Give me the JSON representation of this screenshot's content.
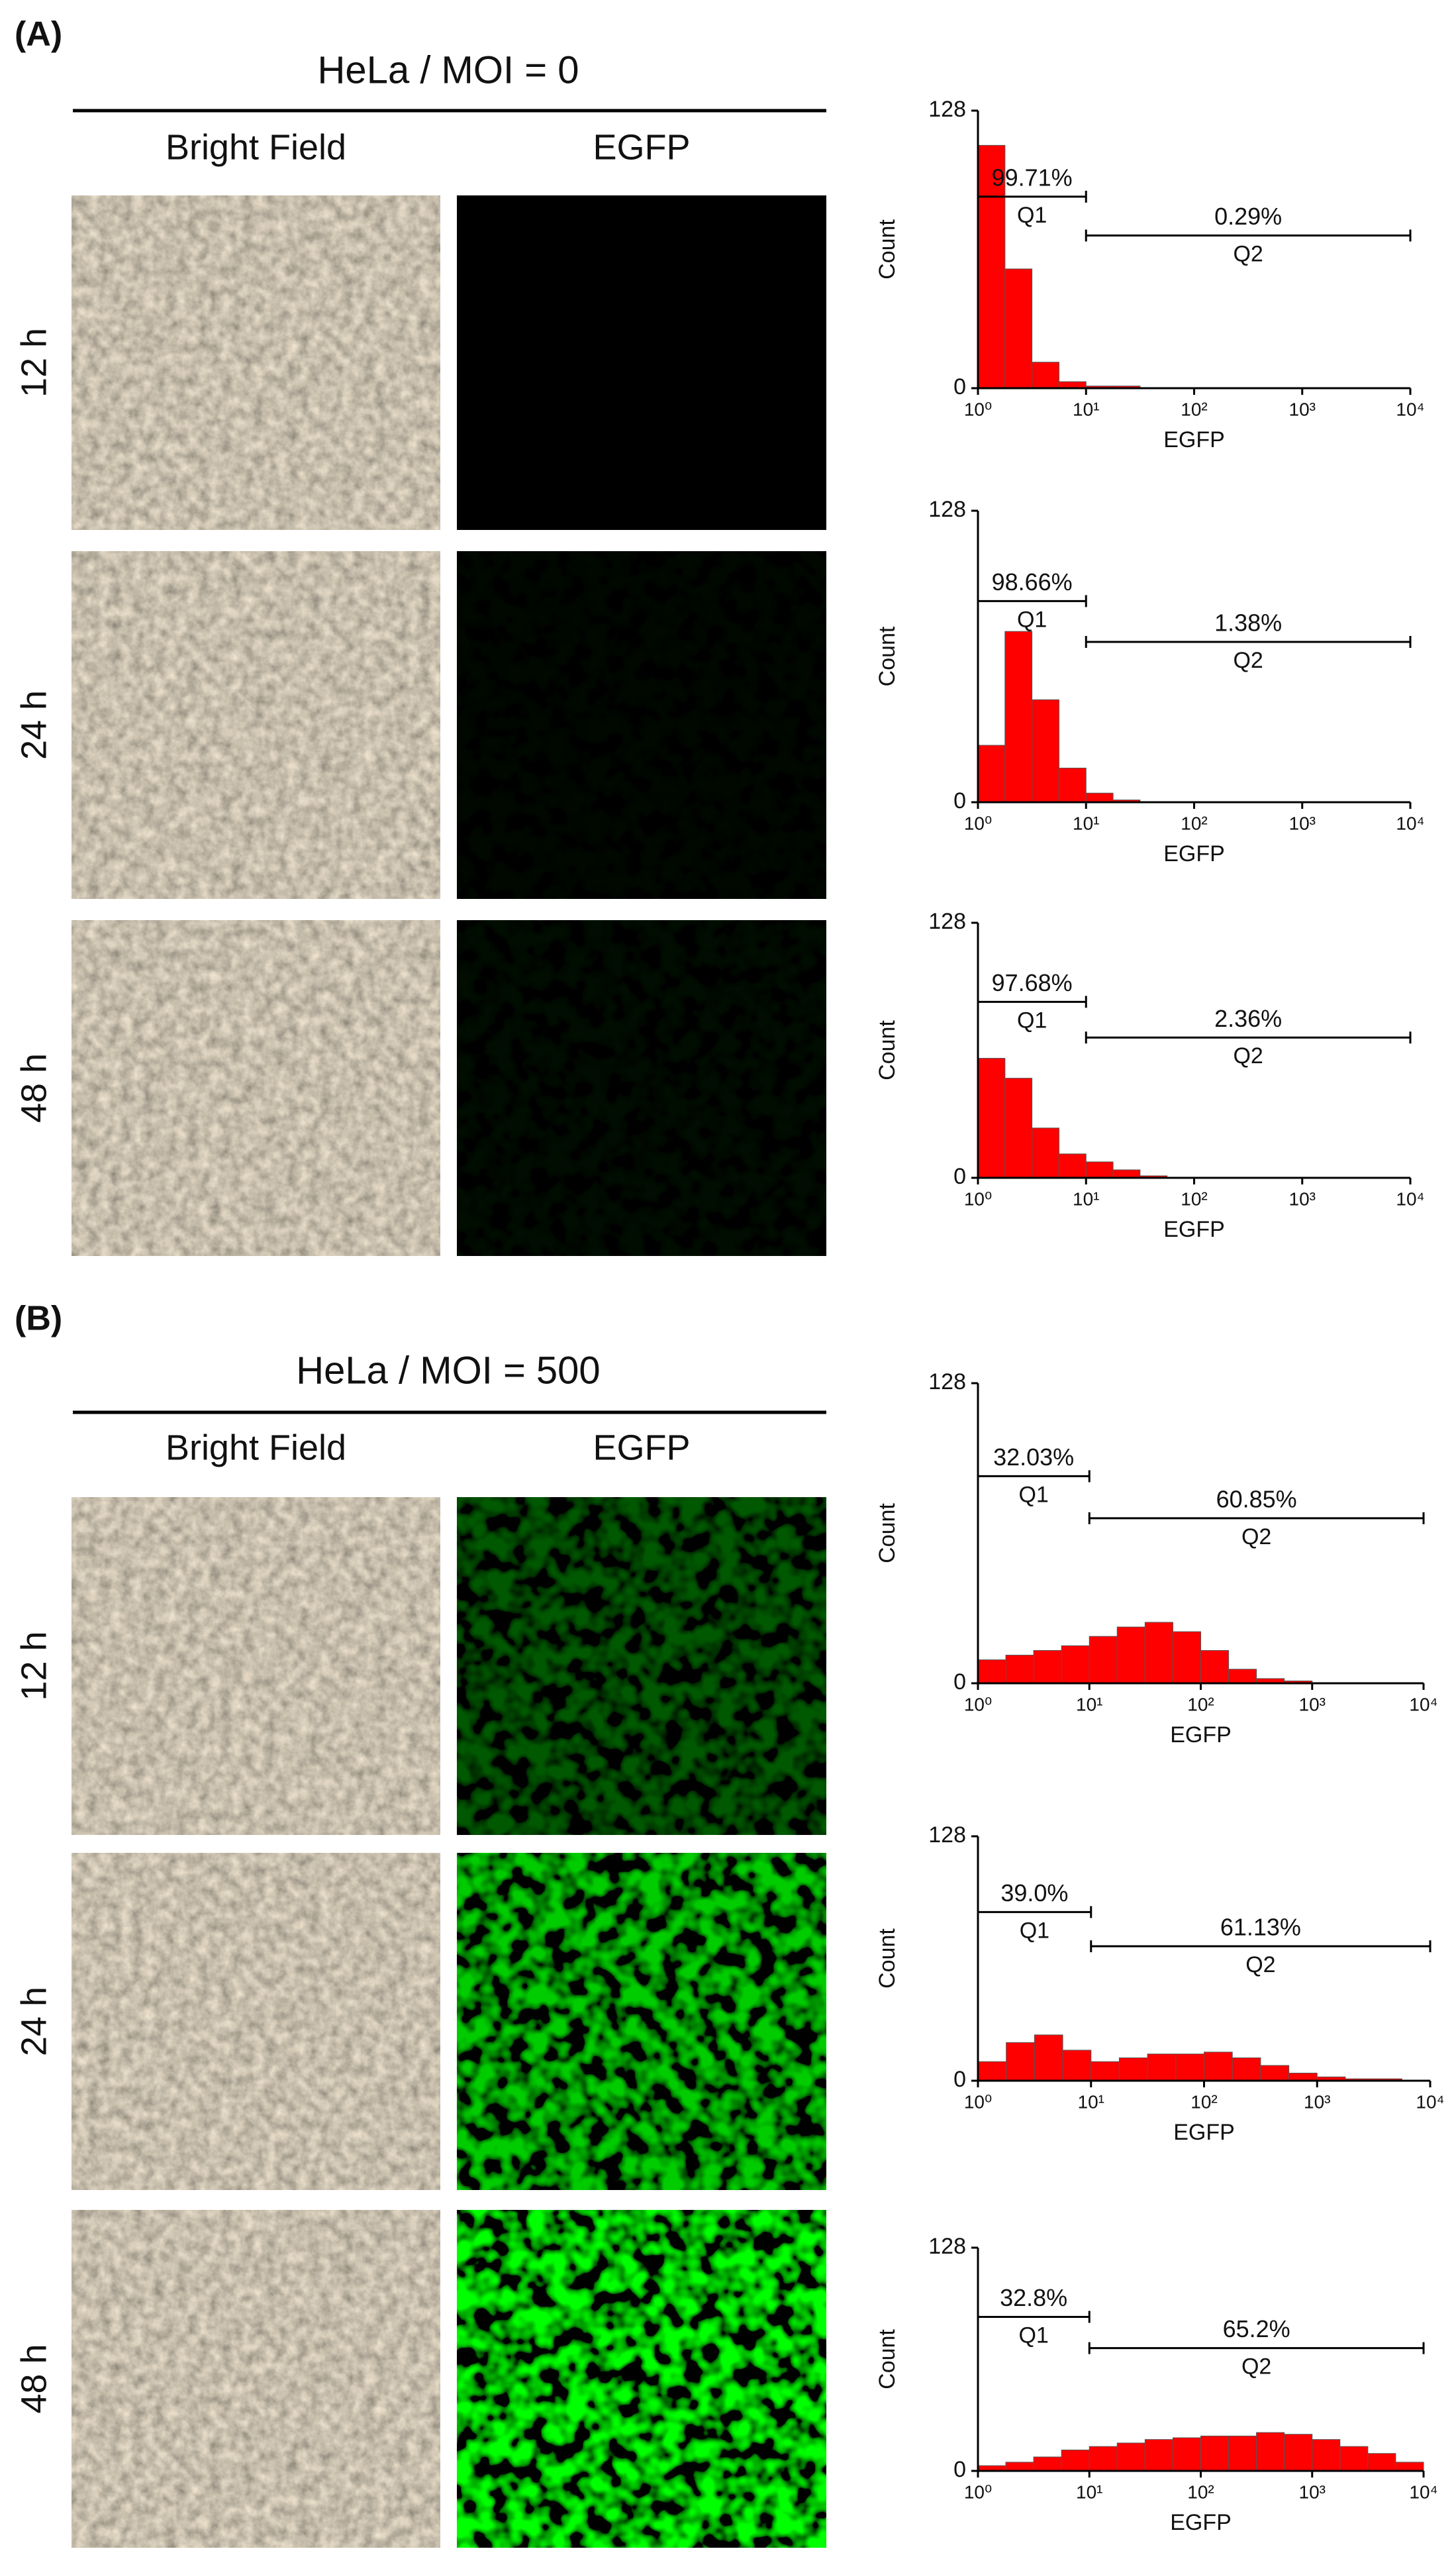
{
  "panels": [
    {
      "label": "(A)",
      "title": "HeLa / MOI = 0",
      "columns": [
        "Bright Field",
        "EGFP"
      ],
      "rows": [
        "12 h",
        "24 h",
        "48 h"
      ]
    },
    {
      "label": "(B)",
      "title": "HeLa / MOI = 500",
      "columns": [
        "Bright Field",
        "EGFP"
      ],
      "rows": [
        "12 h",
        "24 h",
        "48 h"
      ]
    }
  ],
  "chart_data": [
    {
      "type": "histogram",
      "x_label": "EGFP",
      "y_label": "Count",
      "xscale": "log",
      "color": "#ff0000",
      "bins": [
        1,
        1.778,
        3.162,
        5.623,
        10,
        17.78,
        31.62,
        56.23,
        100,
        177.8,
        316.2,
        562.3,
        1000,
        1778,
        3162,
        5623,
        10000
      ],
      "values": [
        112,
        55,
        12,
        3,
        1,
        1,
        0,
        0,
        0,
        0,
        0,
        0,
        0,
        0,
        0,
        0
      ],
      "xlim": [
        1,
        10000
      ],
      "ylim": [
        0,
        128
      ],
      "xticks": [
        {
          "value": 1,
          "label": "10⁰"
        },
        {
          "value": 10,
          "label": "10¹"
        },
        {
          "value": 100,
          "label": "10²"
        },
        {
          "value": 1000,
          "label": "10³"
        },
        {
          "value": 10000,
          "label": "10⁴"
        }
      ],
      "yticks": [
        0,
        128
      ],
      "gates": {
        "names": [
          "Q1",
          "Q2"
        ],
        "values": [
          99.71,
          0.29
        ],
        "value_labels": [
          "99.71%",
          "0.29%"
        ],
        "ranges": [
          [
            1,
            10
          ],
          [
            10,
            10000
          ]
        ]
      }
    },
    {
      "type": "histogram",
      "x_label": "EGFP",
      "y_label": "Count",
      "xscale": "log",
      "color": "#ff0000",
      "bins": [
        1,
        1.778,
        3.162,
        5.623,
        10,
        17.78,
        31.62,
        56.23,
        100,
        177.8,
        316.2,
        562.3,
        1000,
        1778,
        3162,
        5623,
        10000
      ],
      "values": [
        25,
        75,
        45,
        15,
        4,
        1,
        0,
        0,
        0,
        0,
        0,
        0,
        0,
        0,
        0,
        0
      ],
      "xlim": [
        1,
        10000
      ],
      "ylim": [
        0,
        128
      ],
      "xticks": [
        {
          "value": 1,
          "label": "10⁰"
        },
        {
          "value": 10,
          "label": "10¹"
        },
        {
          "value": 100,
          "label": "10²"
        },
        {
          "value": 1000,
          "label": "10³"
        },
        {
          "value": 10000,
          "label": "10⁴"
        }
      ],
      "yticks": [
        0,
        128
      ],
      "gates": {
        "names": [
          "Q1",
          "Q2"
        ],
        "values": [
          98.66,
          1.38
        ],
        "value_labels": [
          "98.66%",
          "1.38%"
        ],
        "ranges": [
          [
            1,
            10
          ],
          [
            10,
            10000
          ]
        ]
      }
    },
    {
      "type": "histogram",
      "x_label": "EGFP",
      "y_label": "Count",
      "xscale": "log",
      "color": "#ff0000",
      "bins": [
        1,
        1.778,
        3.162,
        5.623,
        10,
        17.78,
        31.62,
        56.23,
        100,
        177.8,
        316.2,
        562.3,
        1000,
        1778,
        3162,
        5623,
        10000
      ],
      "values": [
        60,
        50,
        25,
        12,
        8,
        4,
        1,
        0,
        0,
        0,
        0,
        0,
        0,
        0,
        0,
        0
      ],
      "xlim": [
        1,
        10000
      ],
      "ylim": [
        0,
        128
      ],
      "xticks": [
        {
          "value": 1,
          "label": "10⁰"
        },
        {
          "value": 10,
          "label": "10¹"
        },
        {
          "value": 100,
          "label": "10²"
        },
        {
          "value": 1000,
          "label": "10³"
        },
        {
          "value": 10000,
          "label": "10⁴"
        }
      ],
      "yticks": [
        0,
        128
      ],
      "gates": {
        "names": [
          "Q1",
          "Q2"
        ],
        "values": [
          97.68,
          2.36
        ],
        "value_labels": [
          "97.68%",
          "2.36%"
        ],
        "ranges": [
          [
            1,
            10
          ],
          [
            10,
            10000
          ]
        ]
      }
    },
    {
      "type": "histogram",
      "x_label": "EGFP",
      "y_label": "Count",
      "xscale": "log",
      "color": "#ff0000",
      "bins": [
        1,
        1.778,
        3.162,
        5.623,
        10,
        17.78,
        31.62,
        56.23,
        100,
        177.8,
        316.2,
        562.3,
        1000,
        1778,
        3162,
        5623,
        10000
      ],
      "values": [
        10,
        12,
        14,
        16,
        20,
        24,
        26,
        22,
        14,
        6,
        2,
        1,
        0,
        0,
        0,
        0
      ],
      "xlim": [
        1,
        10000
      ],
      "ylim": [
        0,
        128
      ],
      "xticks": [
        {
          "value": 1,
          "label": "10⁰"
        },
        {
          "value": 10,
          "label": "10¹"
        },
        {
          "value": 100,
          "label": "10²"
        },
        {
          "value": 1000,
          "label": "10³"
        },
        {
          "value": 10000,
          "label": "10⁴"
        }
      ],
      "yticks": [
        0,
        128
      ],
      "gates": {
        "names": [
          "Q1",
          "Q2"
        ],
        "values": [
          32.03,
          60.85
        ],
        "value_labels": [
          "32.03%",
          "60.85%"
        ],
        "ranges": [
          [
            1,
            10
          ],
          [
            10,
            10000
          ]
        ]
      }
    },
    {
      "type": "histogram",
      "x_label": "EGFP",
      "y_label": "Count",
      "xscale": "log",
      "color": "#ff0000",
      "bins": [
        1,
        1.778,
        3.162,
        5.623,
        10,
        17.78,
        31.62,
        56.23,
        100,
        177.8,
        316.2,
        562.3,
        1000,
        1778,
        3162,
        5623,
        10000
      ],
      "values": [
        10,
        20,
        24,
        16,
        10,
        12,
        14,
        14,
        15,
        12,
        8,
        4,
        2,
        1,
        1,
        0
      ],
      "xlim": [
        1,
        10000
      ],
      "ylim": [
        0,
        128
      ],
      "xticks": [
        {
          "value": 1,
          "label": "10⁰"
        },
        {
          "value": 10,
          "label": "10¹"
        },
        {
          "value": 100,
          "label": "10²"
        },
        {
          "value": 1000,
          "label": "10³"
        },
        {
          "value": 10000,
          "label": "10⁴"
        }
      ],
      "yticks": [
        0,
        128
      ],
      "gates": {
        "names": [
          "Q1",
          "Q2"
        ],
        "values": [
          39.0,
          61.13
        ],
        "value_labels": [
          "39.0%",
          "61.13%"
        ],
        "ranges": [
          [
            1,
            10
          ],
          [
            10,
            10000
          ]
        ]
      }
    },
    {
      "type": "histogram",
      "x_label": "EGFP",
      "y_label": "Count",
      "xscale": "log",
      "color": "#ff0000",
      "bins": [
        1,
        1.778,
        3.162,
        5.623,
        10,
        17.78,
        31.62,
        56.23,
        100,
        177.8,
        316.2,
        562.3,
        1000,
        1778,
        3162,
        5623,
        10000
      ],
      "values": [
        3,
        5,
        8,
        12,
        14,
        16,
        18,
        19,
        20,
        20,
        22,
        21,
        18,
        14,
        10,
        5
      ],
      "xlim": [
        1,
        10000
      ],
      "ylim": [
        0,
        128
      ],
      "xticks": [
        {
          "value": 1,
          "label": "10⁰"
        },
        {
          "value": 10,
          "label": "10¹"
        },
        {
          "value": 100,
          "label": "10²"
        },
        {
          "value": 1000,
          "label": "10³"
        },
        {
          "value": 10000,
          "label": "10⁴"
        }
      ],
      "yticks": [
        0,
        128
      ],
      "gates": {
        "names": [
          "Q1",
          "Q2"
        ],
        "values": [
          32.8,
          65.2
        ],
        "value_labels": [
          "32.8%",
          "65.2%"
        ],
        "ranges": [
          [
            1,
            10
          ],
          [
            10,
            10000
          ]
        ]
      }
    }
  ]
}
